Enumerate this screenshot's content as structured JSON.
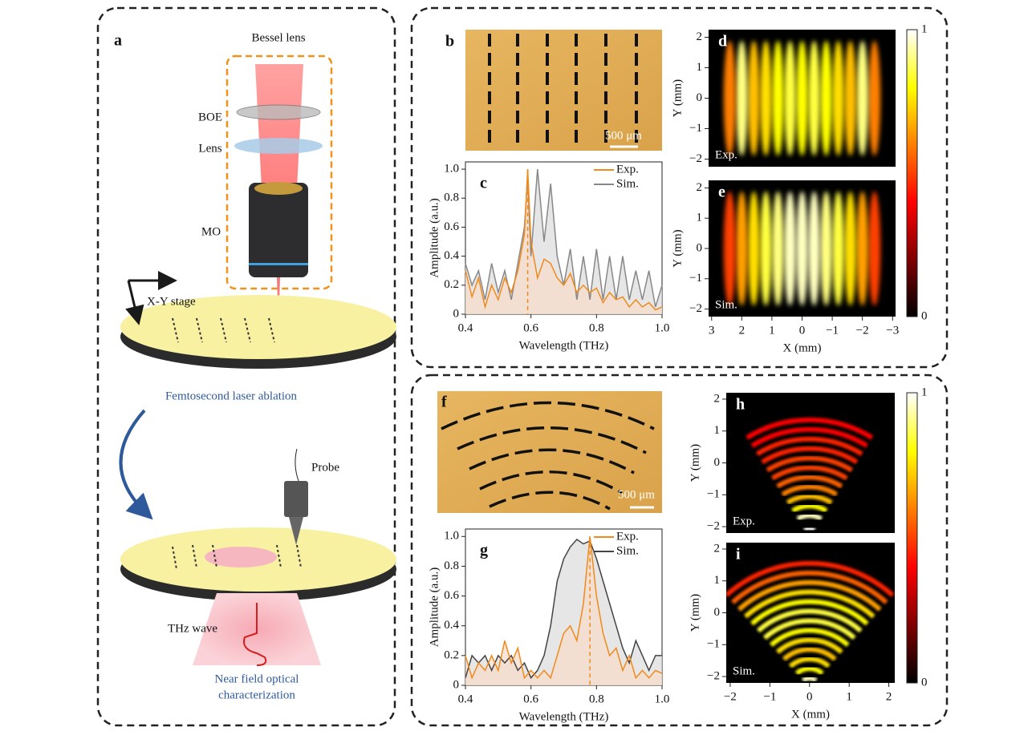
{
  "schematic": {
    "letter": "a",
    "bessel_lens": "Bessel lens",
    "boe": "BOE",
    "lens": "Lens",
    "mo": "MO",
    "stage": "X-Y stage",
    "ablation": "Femtosecond laser ablation",
    "probe": "Probe",
    "thz": "THz wave",
    "near_field": [
      "Near field optical",
      "characterization"
    ]
  },
  "photos": [
    {
      "letter": "b",
      "scale_bar": "500 μm"
    },
    {
      "letter": "f",
      "scale_bar": "500 μm"
    }
  ],
  "chart_data": [
    {
      "type": "line",
      "letter": "c",
      "xlabel": "Wavelength (THz)",
      "ylabel": "Amplitude (a.u.)",
      "xlim": [
        0.4,
        1
      ],
      "ylim": [
        0,
        1.05
      ],
      "xticks": [
        0.4,
        0.6,
        0.8,
        {
          "value": 1,
          "label": "1.0"
        }
      ],
      "yticks": [
        0,
        0.2,
        0.4,
        0.6,
        0.8,
        {
          "value": 1,
          "label": "1.0"
        }
      ],
      "marker_x": 0.59,
      "x": [
        0.4,
        0.42,
        0.44,
        0.46,
        0.48,
        0.5,
        0.52,
        0.54,
        0.56,
        0.58,
        0.59,
        0.6,
        0.62,
        0.64,
        0.66,
        0.68,
        0.7,
        0.72,
        0.74,
        0.76,
        0.78,
        0.8,
        0.82,
        0.84,
        0.86,
        0.88,
        0.9,
        0.92,
        0.94,
        0.96,
        0.98,
        1
      ],
      "series": [
        {
          "name": "Exp.",
          "color": "#f08a1c",
          "values": [
            0.3,
            0.12,
            0.25,
            0.05,
            0.2,
            0.1,
            0.25,
            0.15,
            0.3,
            0.55,
            1.0,
            0.5,
            0.25,
            0.38,
            0.35,
            0.25,
            0.2,
            0.28,
            0.15,
            0.2,
            0.15,
            0.18,
            0.08,
            0.15,
            0.1,
            0.12,
            0.05,
            0.1,
            0.05,
            0.08,
            0.03,
            0.05
          ]
        },
        {
          "name": "Sim.",
          "color": "#888888",
          "values": [
            0.35,
            0.2,
            0.3,
            0.1,
            0.35,
            0.15,
            0.3,
            0.1,
            0.35,
            0.6,
            0.95,
            0.4,
            1.0,
            0.5,
            0.9,
            0.4,
            0.2,
            0.45,
            0.1,
            0.4,
            0.1,
            0.45,
            0.1,
            0.4,
            0.1,
            0.4,
            0.1,
            0.3,
            0.1,
            0.3,
            0.05,
            0.2
          ]
        }
      ]
    },
    {
      "type": "heatmap",
      "letter": "d",
      "label": "Exp.",
      "ylabel": "Y (mm)",
      "xlim": [
        3.1,
        -3.1
      ],
      "ylim": [
        -2.25,
        2.25
      ],
      "yticks": [
        2,
        1,
        0,
        {
          "value": -1,
          "label": "−1"
        },
        {
          "value": -2,
          "label": "−2"
        }
      ],
      "fringes": {
        "x": [
          -2.4,
          -2.0,
          -1.6,
          -1.2,
          -0.8,
          -0.4,
          0,
          0.4,
          0.8,
          1.2,
          1.6,
          2.0,
          2.4
        ],
        "intensity": [
          0.6,
          0.9,
          0.7,
          0.75,
          0.8,
          0.85,
          0.8,
          0.85,
          0.8,
          0.75,
          0.7,
          0.9,
          0.6
        ]
      }
    },
    {
      "type": "heatmap",
      "letter": "e",
      "label": "Sim.",
      "ylabel": "Y (mm)",
      "xlabel": "X (mm)",
      "xlim": [
        3.1,
        -3.1
      ],
      "ylim": [
        -2.25,
        2.25
      ],
      "yticks": [
        2,
        1,
        0,
        {
          "value": -1,
          "label": "−1"
        },
        {
          "value": -2,
          "label": "−2"
        }
      ],
      "xticks": [
        3,
        2,
        1,
        0,
        {
          "value": -1,
          "label": "−1"
        },
        {
          "value": -2,
          "label": "−2"
        },
        {
          "value": -3,
          "label": "−3"
        }
      ],
      "clim": [
        0,
        1
      ],
      "cticks": [
        0,
        1
      ],
      "fringes": {
        "x": [
          -2.4,
          -2.0,
          -1.6,
          -1.2,
          -0.8,
          -0.4,
          0,
          0.4,
          0.8,
          1.2,
          1.6,
          2.0,
          2.4
        ],
        "intensity": [
          0.5,
          0.65,
          0.75,
          0.85,
          0.9,
          0.95,
          0.95,
          0.95,
          0.9,
          0.85,
          0.75,
          0.65,
          0.5
        ]
      }
    },
    {
      "type": "line",
      "letter": "g",
      "xlabel": "Wavelength (THz)",
      "ylabel": "Amplitude (a.u.)",
      "xlim": [
        0.4,
        1
      ],
      "ylim": [
        0,
        1.05
      ],
      "xticks": [
        0.4,
        0.6,
        0.8,
        {
          "value": 1,
          "label": "1.0"
        }
      ],
      "yticks": [
        0,
        0.2,
        0.4,
        0.6,
        0.8,
        {
          "value": 1,
          "label": "1.0"
        }
      ],
      "marker_x": 0.78,
      "x": [
        0.4,
        0.42,
        0.44,
        0.46,
        0.48,
        0.5,
        0.52,
        0.54,
        0.56,
        0.58,
        0.6,
        0.62,
        0.64,
        0.66,
        0.68,
        0.7,
        0.72,
        0.74,
        0.76,
        0.78,
        0.8,
        0.82,
        0.84,
        0.86,
        0.88,
        0.9,
        0.92,
        0.94,
        0.96,
        0.98,
        1
      ],
      "series": [
        {
          "name": "Exp.",
          "color": "#f08a1c",
          "values": [
            0.2,
            0.05,
            0.15,
            0.1,
            0.2,
            0.1,
            0.3,
            0.15,
            0.25,
            0.05,
            0.1,
            0.05,
            0.1,
            0.05,
            0.2,
            0.35,
            0.4,
            0.3,
            0.55,
            1.0,
            0.6,
            0.35,
            0.2,
            0.25,
            0.1,
            0.2,
            0.05,
            0.1,
            0.05,
            0.1,
            0.08
          ]
        },
        {
          "name": "Sim.",
          "color": "#444444",
          "values": [
            0.05,
            0.2,
            0.15,
            0.2,
            0.1,
            0.2,
            0.15,
            0.2,
            0.1,
            0.15,
            0.05,
            0.1,
            0.2,
            0.4,
            0.7,
            0.85,
            0.93,
            0.98,
            0.95,
            0.97,
            0.85,
            0.7,
            0.55,
            0.4,
            0.25,
            0.15,
            0.3,
            0.2,
            0.1,
            0.2,
            0.2
          ]
        }
      ]
    },
    {
      "type": "rings",
      "letter": "h",
      "label": "Exp.",
      "ylabel": "Y (mm)",
      "xlim": [
        -2.1,
        2.15
      ],
      "ylim": [
        -2.2,
        2.2
      ],
      "yticks": [
        2,
        1,
        0,
        {
          "value": -1,
          "label": "−1"
        },
        {
          "value": -2,
          "label": "−2"
        }
      ],
      "spread": 32,
      "rings": {
        "r": [
          0.3,
          0.7,
          1.0,
          1.3,
          1.6,
          1.9,
          2.2,
          2.5,
          2.8,
          3.1,
          3.4,
          3.7
        ],
        "intensity": [
          1,
          0.95,
          0.8,
          0.7,
          0.6,
          0.55,
          0.5,
          0.5,
          0.45,
          0.45,
          0.4,
          0.4
        ]
      }
    },
    {
      "type": "rings",
      "letter": "i",
      "label": "Sim.",
      "ylabel": "Y (mm)",
      "xlabel": "X (mm)",
      "xlim": [
        -2.1,
        2.15
      ],
      "ylim": [
        -2.2,
        2.2
      ],
      "yticks": [
        2,
        1,
        0,
        {
          "value": -1,
          "label": "−1"
        },
        {
          "value": -2,
          "label": "−2"
        }
      ],
      "xticks": [
        {
          "value": -2,
          "label": "−2"
        },
        {
          "value": -1,
          "label": "−1"
        },
        0,
        1,
        2
      ],
      "clim": [
        0,
        1
      ],
      "cticks": [
        0,
        1
      ],
      "spread": 42,
      "rings": {
        "r": [
          0.3,
          0.6,
          0.9,
          1.2,
          1.5,
          1.8,
          2.1,
          2.4,
          2.7,
          3.0,
          3.3,
          3.6,
          3.9
        ],
        "intensity": [
          0.95,
          0.8,
          0.75,
          0.7,
          0.75,
          0.8,
          0.85,
          0.85,
          0.8,
          0.75,
          0.65,
          0.55,
          0.45
        ]
      }
    }
  ]
}
